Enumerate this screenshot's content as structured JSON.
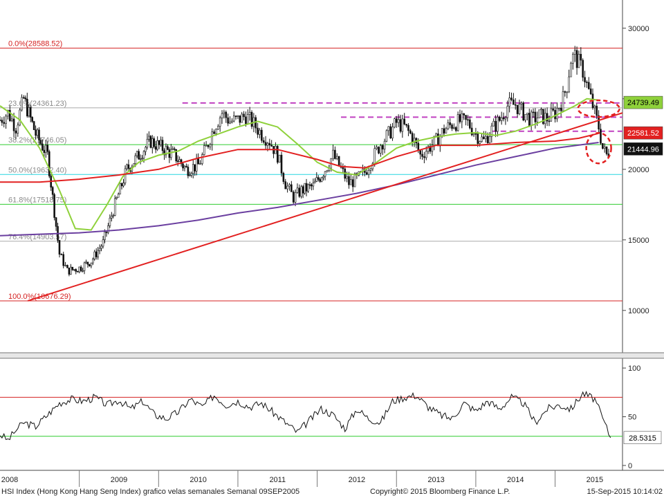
{
  "chart_data": [
    {
      "type": "candlestick",
      "title": "",
      "series_label": "HSI Index (Hong Kong Hang Seng Index) grafico velas semanales  Semanal 09SEP2005",
      "y_axis": {
        "range": [
          7000,
          32000
        ],
        "ticks": [
          "30000",
          "25000",
          "20000",
          "15000",
          "10000"
        ],
        "tick_values": [
          30000,
          25000,
          20000,
          15000,
          10000
        ],
        "position": "right"
      },
      "x_axis": {
        "range": [
          2008.0,
          2015.85
        ],
        "ticks": [
          "2008",
          "2009",
          "2010",
          "2011",
          "2012",
          "2013",
          "2014",
          "2015"
        ],
        "tick_values": [
          2008.0,
          2009.0,
          2010.0,
          2011.0,
          2012.0,
          2013.0,
          2014.0,
          2015.0
        ]
      },
      "price": {
        "x": [
          2008.0,
          2008.1,
          2008.2,
          2008.3,
          2008.45,
          2008.6,
          2008.75,
          2008.85,
          2009.0,
          2009.15,
          2009.3,
          2009.45,
          2009.6,
          2009.75,
          2009.9,
          2010.05,
          2010.2,
          2010.35,
          2010.5,
          2010.6,
          2010.7,
          2010.8,
          2010.9,
          2011.0,
          2011.1,
          2011.2,
          2011.3,
          2011.4,
          2011.5,
          2011.6,
          2011.7,
          2011.8,
          2011.95,
          2012.1,
          2012.2,
          2012.3,
          2012.4,
          2012.5,
          2012.6,
          2012.7,
          2012.8,
          2012.9,
          2013.0,
          2013.1,
          2013.2,
          2013.3,
          2013.4,
          2013.5,
          2013.6,
          2013.7,
          2013.8,
          2013.9,
          2014.0,
          2014.1,
          2014.2,
          2014.3,
          2014.4,
          2014.5,
          2014.6,
          2014.7,
          2014.8,
          2014.9,
          2015.0,
          2015.05,
          2015.1,
          2015.15,
          2015.2,
          2015.25,
          2015.3,
          2015.35,
          2015.4,
          2015.45,
          2015.5,
          2015.55,
          2015.6,
          2015.65,
          2015.7
        ],
        "y": [
          23500,
          24000,
          23000,
          25000,
          22500,
          21000,
          14000,
          12800,
          13000,
          13500,
          14800,
          17500,
          20000,
          21000,
          22000,
          21500,
          21000,
          20000,
          20300,
          21500,
          23000,
          24000,
          23400,
          23500,
          23800,
          23200,
          22500,
          22000,
          21000,
          19000,
          18000,
          18500,
          18800,
          20000,
          21000,
          20000,
          19000,
          19300,
          19800,
          20800,
          21800,
          22500,
          23300,
          23000,
          22300,
          21000,
          21500,
          22000,
          22800,
          23200,
          23400,
          23300,
          22500,
          22000,
          22800,
          23500,
          24500,
          24600,
          24000,
          23500,
          23800,
          23600,
          24000,
          24500,
          25000,
          26000,
          27800,
          28000,
          27500,
          27000,
          26000,
          25000,
          24000,
          23000,
          21500,
          21000,
          21445
        ]
      },
      "lines": [
        {
          "name": "ma-fast",
          "color": "#8fd13b",
          "x": [
            2008.0,
            2008.25,
            2008.5,
            2008.75,
            2008.95,
            2009.15,
            2009.35,
            2009.55,
            2009.75,
            2010.0,
            2010.25,
            2010.5,
            2010.75,
            2011.0,
            2011.25,
            2011.5,
            2011.75,
            2012.0,
            2012.25,
            2012.5,
            2012.75,
            2013.0,
            2013.25,
            2013.5,
            2013.75,
            2014.0,
            2014.25,
            2014.5,
            2014.75,
            2015.0,
            2015.25,
            2015.4,
            2015.55
          ],
          "y": [
            24500,
            23500,
            21500,
            18500,
            15800,
            15700,
            17500,
            19500,
            20500,
            21000,
            21300,
            22000,
            22500,
            23000,
            23400,
            23000,
            21800,
            20500,
            19800,
            19600,
            20500,
            21500,
            22000,
            22300,
            22500,
            22600,
            22400,
            22700,
            23200,
            23800,
            24500,
            25000,
            24900
          ]
        },
        {
          "name": "ma-mid",
          "color": "#e22020",
          "x": [
            2008.0,
            2008.5,
            2009.0,
            2009.5,
            2010.0,
            2010.5,
            2011.0,
            2011.5,
            2012.0,
            2012.3,
            2012.6,
            2013.0,
            2013.5,
            2014.0,
            2014.5,
            2015.0,
            2015.3,
            2015.55
          ],
          "y": [
            19100,
            19100,
            19300,
            19600,
            20000,
            20800,
            21400,
            21400,
            20700,
            20200,
            20100,
            20900,
            21700,
            21700,
            21900,
            22000,
            22200,
            22550
          ]
        },
        {
          "name": "ma-slow",
          "color": "#6b3fa0",
          "x": [
            2008.0,
            2008.5,
            2009.0,
            2009.5,
            2010.0,
            2010.5,
            2011.0,
            2011.5,
            2012.0,
            2012.5,
            2013.0,
            2013.5,
            2014.0,
            2014.5,
            2015.0,
            2015.55
          ],
          "y": [
            15300,
            15400,
            15500,
            15700,
            16000,
            16400,
            16900,
            17300,
            17800,
            18300,
            18900,
            19600,
            20300,
            20900,
            21500,
            21900
          ]
        },
        {
          "name": "trendline",
          "color": "#e22020",
          "x": [
            2008.35,
            2015.85
          ],
          "y": [
            10680,
            24000
          ]
        }
      ],
      "fibonacci": [
        {
          "label": "0.0%(28588.52)",
          "value": 28588.52,
          "color": "#d42020",
          "label_color": "#d42020"
        },
        {
          "label": "23.6%(24361.23)",
          "value": 24361.23,
          "color": "#a9a9a9",
          "label_color": "#888888"
        },
        {
          "label": "38.2%(21746.05)",
          "value": 21746.05,
          "color": "#2ecc2e",
          "label_color": "#8a8a8a"
        },
        {
          "label": "50.0%(19632.40)",
          "value": 19632.4,
          "color": "#27d6e0",
          "label_color": "#8a8a8a"
        },
        {
          "label": "61.8%(17518.75)",
          "value": 17518.75,
          "color": "#2ecc2e",
          "label_color": "#8a8a8a"
        },
        {
          "label": "76.4%(14903.57)",
          "value": 14903.57,
          "color": "#a9a9a9",
          "label_color": "#8a8a8a"
        },
        {
          "label": "100.0%(10676.29)",
          "value": 10676.29,
          "color": "#d42020",
          "label_color": "#d42020"
        }
      ],
      "horizontal_dashed": [
        {
          "value": 24700,
          "x_start": 2010.3,
          "x_end": 2015.85,
          "color": "#c040c0"
        },
        {
          "value": 23700,
          "x_start": 2012.3,
          "x_end": 2015.85,
          "color": "#c040c0"
        },
        {
          "value": 22700,
          "x_start": 2014.2,
          "x_end": 2015.85,
          "color": "#c040c0"
        }
      ],
      "value_tags": [
        {
          "label": "24739.49",
          "value": 24739.49,
          "bg": "#8fd13b",
          "fg": "#000000"
        },
        {
          "label": "22581.52",
          "value": 22581.52,
          "bg": "#e22020",
          "fg": "#ffffff"
        },
        {
          "label": "21444.96",
          "value": 21444.96,
          "bg": "#111111",
          "fg": "#ffffff"
        }
      ],
      "annotations": [
        {
          "type": "dashed-ellipse",
          "color": "#e22020",
          "x": 2015.55,
          "y": 24300
        },
        {
          "type": "dashed-circle",
          "color": "#e22020",
          "x": 2015.55,
          "y": 21500
        }
      ]
    },
    {
      "type": "line",
      "title": "",
      "y_axis": {
        "range": [
          -5,
          110
        ],
        "ticks": [
          "100",
          "50",
          "0"
        ],
        "tick_values": [
          100,
          50,
          0
        ],
        "position": "right"
      },
      "levels": [
        {
          "value": 70,
          "color": "#d42020"
        },
        {
          "value": 30,
          "color": "#2ecc2e"
        }
      ],
      "series": [
        {
          "x": [
            2008.0,
            2008.1,
            2008.2,
            2008.3,
            2008.45,
            2008.6,
            2008.75,
            2008.9,
            2009.05,
            2009.2,
            2009.35,
            2009.5,
            2009.65,
            2009.8,
            2009.95,
            2010.1,
            2010.25,
            2010.4,
            2010.55,
            2010.7,
            2010.85,
            2011.0,
            2011.15,
            2011.3,
            2011.45,
            2011.6,
            2011.75,
            2011.9,
            2012.05,
            2012.2,
            2012.35,
            2012.5,
            2012.65,
            2012.8,
            2012.95,
            2013.1,
            2013.25,
            2013.4,
            2013.55,
            2013.7,
            2013.85,
            2014.0,
            2014.15,
            2014.3,
            2014.45,
            2014.6,
            2014.75,
            2014.9,
            2015.05,
            2015.2,
            2015.35,
            2015.5,
            2015.6,
            2015.7
          ],
          "y": [
            32,
            26,
            36,
            44,
            40,
            52,
            64,
            68,
            66,
            70,
            62,
            67,
            58,
            66,
            52,
            48,
            55,
            68,
            60,
            72,
            62,
            66,
            60,
            64,
            54,
            44,
            34,
            46,
            58,
            52,
            38,
            58,
            48,
            44,
            66,
            70,
            72,
            60,
            52,
            48,
            64,
            56,
            66,
            58,
            70,
            64,
            44,
            58,
            62,
            58,
            74,
            68,
            48,
            28.53
          ]
        }
      ],
      "value_tags": [
        {
          "label": "28.5315",
          "value": 28.53,
          "bg": "#ffffff",
          "fg": "#000000"
        }
      ]
    }
  ],
  "footer": {
    "left": "HSI Index (Hong Kong Hang Seng Index) grafico velas semanales  Semanal 09SEP2005",
    "center": "Copyright© 2015 Bloomberg Finance L.P.",
    "right": "15-Sep-2015 10:14:02"
  }
}
